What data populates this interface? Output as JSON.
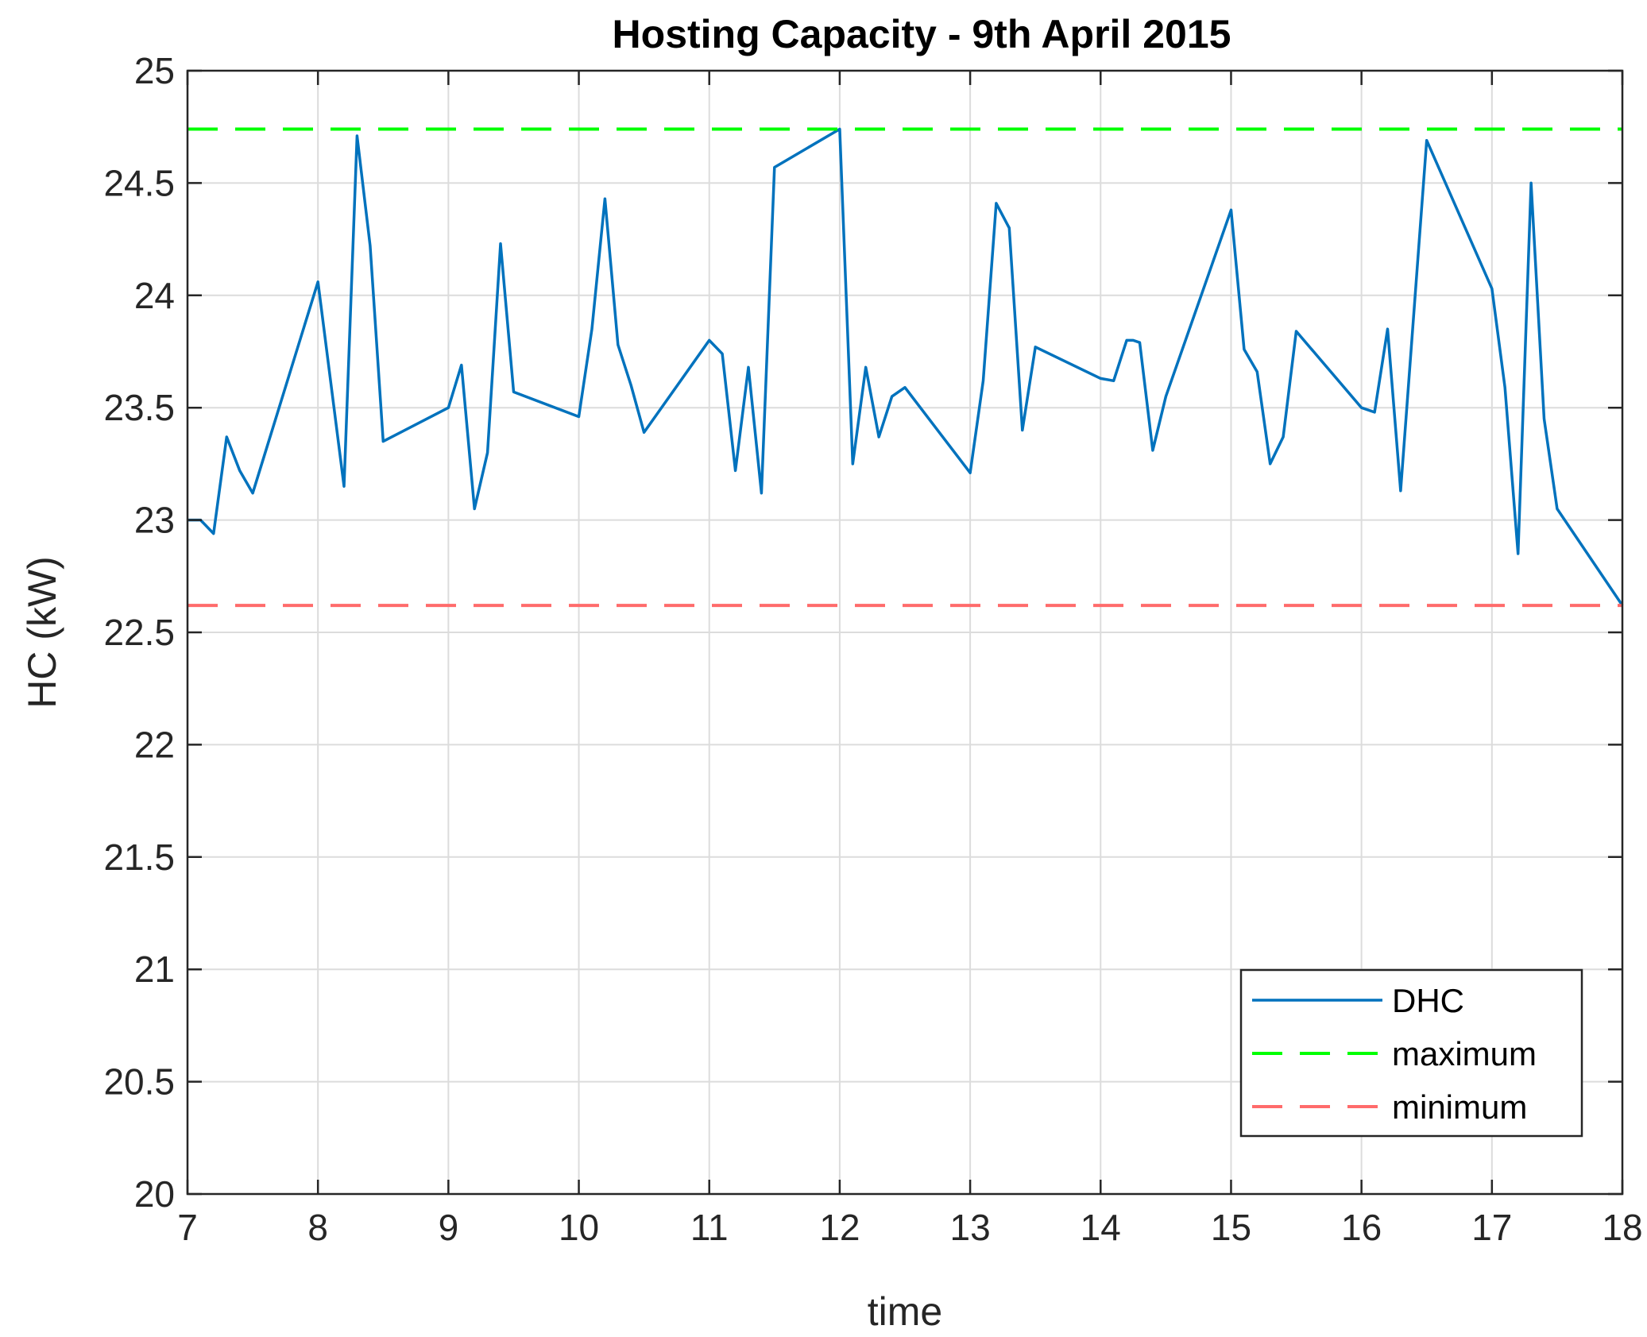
{
  "chart_data": {
    "type": "line",
    "title": "Hosting Capacity - 9th April 2015",
    "xlabel": "time",
    "ylabel": "HC (kW)",
    "xlim": [
      7,
      18
    ],
    "ylim": [
      20,
      25
    ],
    "xticks": [
      7,
      8,
      9,
      10,
      11,
      12,
      13,
      14,
      15,
      16,
      17,
      18
    ],
    "yticks": [
      20,
      20.5,
      21,
      21.5,
      22,
      22.5,
      23,
      23.5,
      24,
      24.5,
      25
    ],
    "grid": true,
    "legend_position": "bottom-right",
    "series": [
      {
        "name": "DHC",
        "style": "solid",
        "color": "#0072BD",
        "x": [
          7,
          7.1,
          7.2,
          7.3,
          7.4,
          7.5,
          8,
          8.2,
          8.3,
          8.4,
          8.5,
          9,
          9.1,
          9.2,
          9.3,
          9.4,
          9.5,
          10,
          10.1,
          10.2,
          10.3,
          10.4,
          10.5,
          11,
          11.1,
          11.2,
          11.3,
          11.4,
          11.5,
          12,
          12.1,
          12.2,
          12.3,
          12.4,
          12.5,
          13,
          13.1,
          13.2,
          13.3,
          13.4,
          13.5,
          14,
          14.1,
          14.2,
          14.25,
          14.3,
          14.4,
          14.5,
          15,
          15.1,
          15.2,
          15.3,
          15.4,
          15.5,
          16,
          16.1,
          16.2,
          16.3,
          16.5,
          17,
          17.1,
          17.2,
          17.3,
          17.4,
          17.5,
          18
        ],
        "y": [
          23.0,
          23.0,
          22.94,
          23.37,
          23.22,
          23.12,
          24.06,
          23.15,
          24.71,
          24.22,
          23.35,
          23.5,
          23.69,
          23.05,
          23.3,
          24.23,
          23.57,
          23.46,
          23.85,
          24.43,
          23.78,
          23.6,
          23.39,
          23.8,
          23.74,
          23.22,
          23.68,
          23.12,
          24.57,
          24.74,
          23.25,
          23.68,
          23.37,
          23.55,
          23.59,
          23.21,
          23.62,
          24.41,
          24.3,
          23.4,
          23.77,
          23.63,
          23.62,
          23.8,
          23.8,
          23.79,
          23.31,
          23.55,
          24.38,
          23.76,
          23.66,
          23.25,
          23.37,
          23.84,
          23.5,
          23.48,
          23.85,
          23.13,
          24.69,
          24.03,
          23.59,
          22.85,
          24.5,
          23.45,
          23.05,
          22.62
        ]
      },
      {
        "name": "maximum",
        "style": "dashed",
        "color": "#00FF00",
        "x": [
          7,
          18
        ],
        "y": [
          24.74,
          24.74
        ]
      },
      {
        "name": "minimum",
        "style": "dashed",
        "color": "#FF6B6B",
        "x": [
          7,
          18
        ],
        "y": [
          22.62,
          22.62
        ]
      }
    ]
  }
}
